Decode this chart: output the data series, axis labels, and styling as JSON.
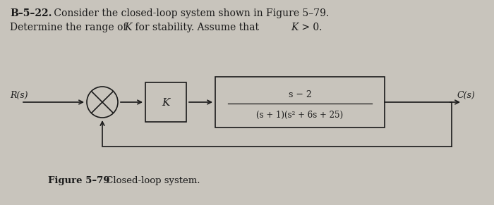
{
  "bg_color": "#c8c4bc",
  "text_color": "#1a1a1a",
  "box_color": "#1a1a1a",
  "arrow_color": "#1a1a1a",
  "label_Rs": "R(s)",
  "label_Cs": "C(s)",
  "label_K": "K",
  "tf_numerator": "s − 2",
  "tf_denominator": "(s + 1)(s² + 6s + 25)",
  "fig_caption_bold": "Figure 5–79",
  "fig_caption_normal": " Closed-loop system.",
  "lw": 1.2
}
